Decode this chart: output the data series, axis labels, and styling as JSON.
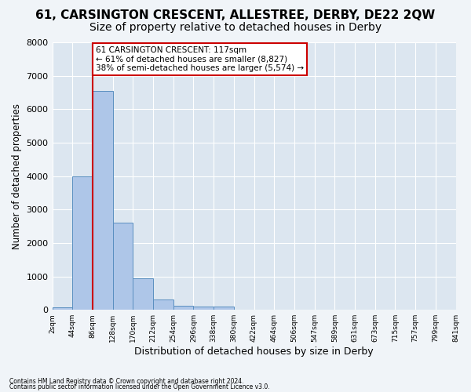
{
  "title": "61, CARSINGTON CRESCENT, ALLESTREE, DERBY, DE22 2QW",
  "subtitle": "Size of property relative to detached houses in Derby",
  "xlabel": "Distribution of detached houses by size in Derby",
  "ylabel": "Number of detached properties",
  "footer1": "Contains HM Land Registry data © Crown copyright and database right 2024.",
  "footer2": "Contains public sector information licensed under the Open Government Licence v3.0.",
  "bin_labels": [
    "2sqm",
    "44sqm",
    "86sqm",
    "128sqm",
    "170sqm",
    "212sqm",
    "254sqm",
    "296sqm",
    "338sqm",
    "380sqm",
    "422sqm",
    "464sqm",
    "506sqm",
    "547sqm",
    "589sqm",
    "631sqm",
    "673sqm",
    "715sqm",
    "757sqm",
    "799sqm",
    "841sqm"
  ],
  "bar_values": [
    70,
    4000,
    6550,
    2600,
    950,
    310,
    130,
    110,
    90,
    0,
    0,
    0,
    0,
    0,
    0,
    0,
    0,
    0,
    0,
    0
  ],
  "bar_color": "#aec6e8",
  "bar_edge_color": "#5a8fc0",
  "vline_color": "#cc0000",
  "annotation_line1": "61 CARSINGTON CRESCENT: 117sqm",
  "annotation_line2": "← 61% of detached houses are smaller (8,827)",
  "annotation_line3": "38% of semi-detached houses are larger (5,574) →",
  "ylim": [
    0,
    8000
  ],
  "yticks": [
    0,
    1000,
    2000,
    3000,
    4000,
    5000,
    6000,
    7000,
    8000
  ],
  "plot_bg_color": "#dce6f0",
  "fig_bg_color": "#f0f4f8",
  "grid_color": "#ffffff",
  "title_fontsize": 11,
  "subtitle_fontsize": 10,
  "xlabel_fontsize": 9,
  "ylabel_fontsize": 8.5
}
